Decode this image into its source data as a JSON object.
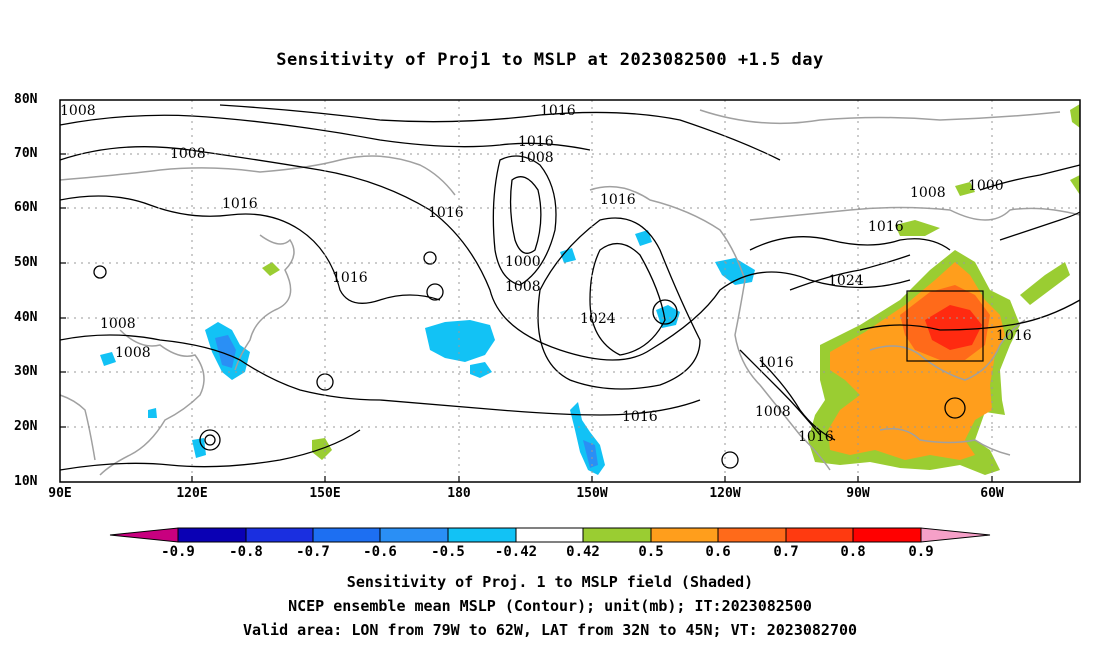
{
  "title": "Sensitivity of Proj1 to MSLP at 2023082500 +1.5 day",
  "lat_labels": [
    "80N",
    "70N",
    "60N",
    "50N",
    "40N",
    "30N",
    "20N",
    "10N"
  ],
  "lon_labels": [
    "90E",
    "120E",
    "150E",
    "180",
    "150W",
    "120W",
    "90W",
    "60W"
  ],
  "contour_labels": [
    "1008",
    "1008",
    "1016",
    "1016",
    "1016",
    "1008",
    "1016",
    "1000",
    "1008",
    "1016",
    "1008",
    "1000",
    "1016",
    "1024",
    "1016",
    "1008",
    "1008",
    "1024",
    "1016",
    "1016",
    "1008",
    "1016",
    "1016"
  ],
  "colorbar": {
    "labels": [
      "-0.9",
      "-0.8",
      "-0.7",
      "-0.6",
      "-0.5",
      "-0.42",
      "0.42",
      "0.5",
      "0.6",
      "0.7",
      "0.8",
      "0.9"
    ],
    "colors": [
      "#c8007f",
      "#0a00b4",
      "#1a2fe0",
      "#1d6ff2",
      "#2a8ff5",
      "#12c2f5",
      "#ffffff",
      "#9acd32",
      "#ff9e1c",
      "#ff6a1a",
      "#ff3a10",
      "#ff0000",
      "#f5a0c8"
    ]
  },
  "captions": [
    "Sensitivity of Proj. 1 to MSLP field (Shaded)",
    "NCEP ensemble mean MSLP (Contour); unit(mb); IT:2023082500",
    "Valid area: LON from 79W to 62W, LAT from 32N to 45N; VT: 2023082700"
  ]
}
